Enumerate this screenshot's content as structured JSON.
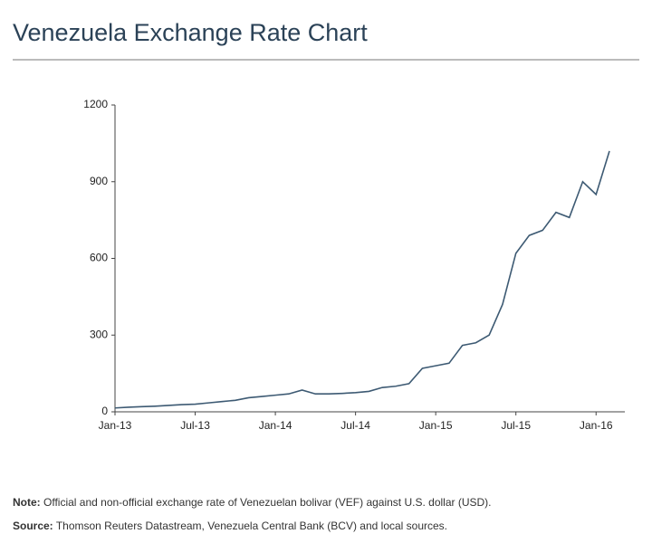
{
  "chart_data": {
    "type": "line",
    "title": "Venezuela Exchange Rate Chart",
    "x": [
      "2013-01",
      "2013-02",
      "2013-03",
      "2013-04",
      "2013-05",
      "2013-06",
      "2013-07",
      "2013-08",
      "2013-09",
      "2013-10",
      "2013-11",
      "2013-12",
      "2014-01",
      "2014-02",
      "2014-03",
      "2014-04",
      "2014-05",
      "2014-06",
      "2014-07",
      "2014-08",
      "2014-09",
      "2014-10",
      "2014-11",
      "2014-12",
      "2015-01",
      "2015-02",
      "2015-03",
      "2015-04",
      "2015-05",
      "2015-06",
      "2015-07",
      "2015-08",
      "2015-09",
      "2015-10",
      "2015-11",
      "2015-12",
      "2016-01",
      "2016-02"
    ],
    "series": [
      {
        "color": "#3d5a73",
        "values": [
          15,
          18,
          20,
          22,
          25,
          28,
          30,
          35,
          40,
          45,
          55,
          60,
          65,
          70,
          85,
          70,
          70,
          72,
          75,
          80,
          95,
          100,
          110,
          170,
          180,
          190,
          260,
          270,
          300,
          420,
          620,
          690,
          710,
          780,
          760,
          900,
          850,
          1020
        ]
      }
    ],
    "xlim": [
      "2013-01",
      "2016-02"
    ],
    "xticks": [
      {
        "value": "2013-01",
        "label": "Jan-13"
      },
      {
        "value": "2013-07",
        "label": "Jul-13"
      },
      {
        "value": "2014-01",
        "label": "Jan-14"
      },
      {
        "value": "2014-07",
        "label": "Jul-14"
      },
      {
        "value": "2015-01",
        "label": "Jan-15"
      },
      {
        "value": "2015-07",
        "label": "Jul-15"
      },
      {
        "value": "2016-01",
        "label": "Jan-16"
      }
    ],
    "ylim": [
      0,
      1200
    ],
    "yticks": [
      0,
      300,
      600,
      900,
      1200
    ],
    "grid": false,
    "note": {
      "label": "Note:",
      "text": "Official and non-official exchange rate of Venezuelan bolivar (VEF) against U.S. dollar (USD)."
    },
    "source": {
      "label": "Source:",
      "text": "Thomson Reuters Datastream, Venezuela Central Bank (BCV) and local sources."
    }
  }
}
